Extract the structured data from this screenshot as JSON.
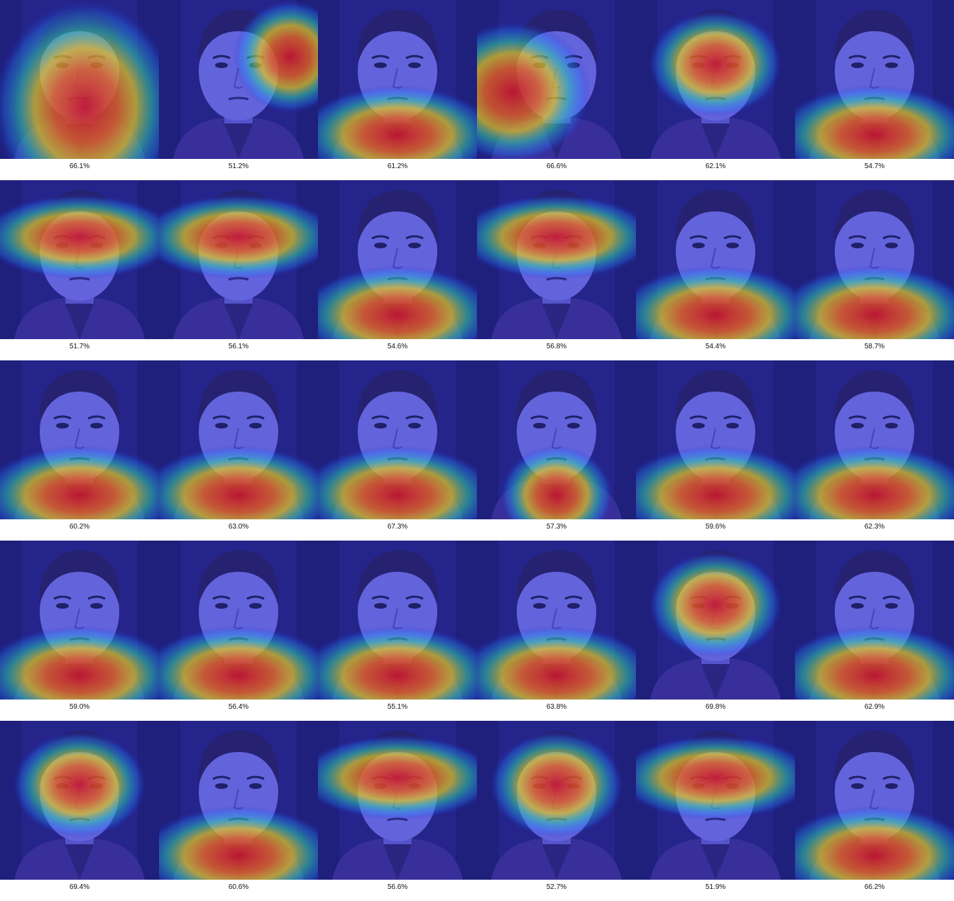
{
  "grid": {
    "columns": 6,
    "items": [
      {
        "label": "66.1%",
        "heat": "red-left-face"
      },
      {
        "label": "51.2%",
        "heat": "red-right"
      },
      {
        "label": "61.2%",
        "heat": "red-lower"
      },
      {
        "label": "66.6%",
        "heat": "red-left"
      },
      {
        "label": "62.1%",
        "heat": "red-face"
      },
      {
        "label": "54.7%",
        "heat": "red-lower"
      },
      {
        "label": "51.7%",
        "heat": "red-eyes"
      },
      {
        "label": "56.1%",
        "heat": "red-eyes"
      },
      {
        "label": "54.6%",
        "heat": "red-lower"
      },
      {
        "label": "56.8%",
        "heat": "red-eyes"
      },
      {
        "label": "54.4%",
        "heat": "red-lower"
      },
      {
        "label": "58.7%",
        "heat": "red-lower"
      },
      {
        "label": "60.2%",
        "heat": "red-lower"
      },
      {
        "label": "63.0%",
        "heat": "red-lower"
      },
      {
        "label": "67.3%",
        "heat": "red-lower"
      },
      {
        "label": "57.3%",
        "heat": "red-lower-center"
      },
      {
        "label": "59.6%",
        "heat": "red-lower"
      },
      {
        "label": "62.3%",
        "heat": "red-lower"
      },
      {
        "label": "59.0%",
        "heat": "red-lower"
      },
      {
        "label": "56.4%",
        "heat": "red-lower"
      },
      {
        "label": "55.1%",
        "heat": "red-lower"
      },
      {
        "label": "63.8%",
        "heat": "red-lower"
      },
      {
        "label": "69.8%",
        "heat": "red-face"
      },
      {
        "label": "62.9%",
        "heat": "red-lower"
      },
      {
        "label": "69.4%",
        "heat": "red-face"
      },
      {
        "label": "60.6%",
        "heat": "red-lower"
      },
      {
        "label": "56.6%",
        "heat": "red-eyes"
      },
      {
        "label": "52.7%",
        "heat": "red-face"
      },
      {
        "label": "51.9%",
        "heat": "red-eyes"
      },
      {
        "label": "66.2%",
        "heat": "red-lower"
      }
    ]
  }
}
